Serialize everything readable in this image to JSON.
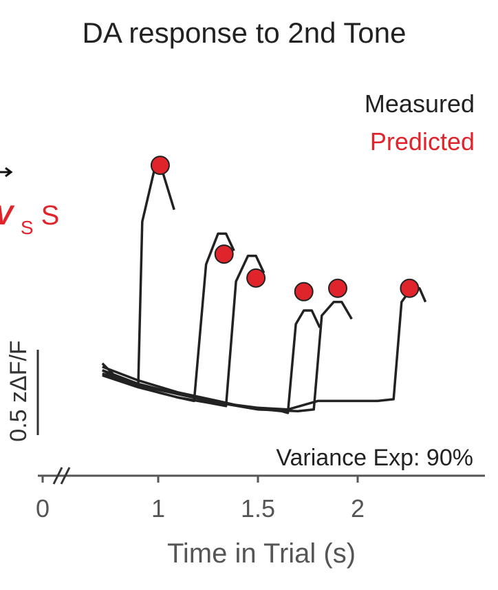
{
  "chart_data": {
    "type": "line",
    "title": "DA response to 2nd Tone",
    "xlabel": "Time in Trial (s)",
    "xticks": [
      {
        "value": 0,
        "label": "0"
      },
      {
        "value": 1,
        "label": "1"
      },
      {
        "value": 1.5,
        "label": "1.5"
      },
      {
        "value": 2,
        "label": "2"
      }
    ],
    "axis_break": true,
    "scale_bar": {
      "label": "0.5 zΔF/F",
      "value": 0.5
    },
    "annotation": "Variance Exp: 90%",
    "side_label": {
      "main": "V",
      "sub": "S",
      "suffix": "S"
    },
    "legend": {
      "position": "top-right",
      "entries": [
        {
          "label": "Measured",
          "color": "#222222"
        },
        {
          "label": "Predicted",
          "color": "#e0242b"
        }
      ]
    },
    "colors": {
      "measured": "#222222",
      "predicted": "#e0242b",
      "axis": "#555555"
    },
    "series": [
      {
        "measured": [
          [
            0.72,
            0.42
          ],
          [
            0.78,
            0.35
          ],
          [
            0.85,
            0.32
          ],
          [
            0.9,
            0.3
          ],
          [
            0.92,
            1.25
          ],
          [
            0.98,
            1.55
          ],
          [
            1.02,
            1.55
          ],
          [
            1.08,
            1.32
          ]
        ],
        "predicted": {
          "x": 1.01,
          "y": 1.58
        }
      },
      {
        "measured": [
          [
            0.72,
            0.38
          ],
          [
            0.85,
            0.3
          ],
          [
            1.0,
            0.25
          ],
          [
            1.1,
            0.22
          ],
          [
            1.18,
            0.2
          ],
          [
            1.24,
            1.0
          ],
          [
            1.3,
            1.18
          ],
          [
            1.34,
            1.18
          ],
          [
            1.38,
            1.08
          ]
        ],
        "predicted": {
          "x": 1.33,
          "y": 1.06
        }
      },
      {
        "measured": [
          [
            0.72,
            0.35
          ],
          [
            0.9,
            0.28
          ],
          [
            1.1,
            0.22
          ],
          [
            1.25,
            0.19
          ],
          [
            1.34,
            0.17
          ],
          [
            1.39,
            0.9
          ],
          [
            1.45,
            1.05
          ],
          [
            1.49,
            1.05
          ],
          [
            1.53,
            0.95
          ]
        ],
        "predicted": {
          "x": 1.49,
          "y": 0.92
        }
      },
      {
        "measured": [
          [
            0.72,
            0.4
          ],
          [
            0.9,
            0.32
          ],
          [
            1.1,
            0.25
          ],
          [
            1.3,
            0.2
          ],
          [
            1.45,
            0.16
          ],
          [
            1.62,
            0.14
          ],
          [
            1.65,
            0.13
          ],
          [
            1.69,
            0.65
          ],
          [
            1.73,
            0.73
          ],
          [
            1.77,
            0.73
          ],
          [
            1.81,
            0.63
          ]
        ],
        "predicted": {
          "x": 1.73,
          "y": 0.84
        }
      },
      {
        "measured": [
          [
            0.72,
            0.36
          ],
          [
            0.9,
            0.29
          ],
          [
            1.1,
            0.24
          ],
          [
            1.3,
            0.19
          ],
          [
            1.5,
            0.15
          ],
          [
            1.7,
            0.14
          ],
          [
            1.78,
            0.15
          ],
          [
            1.82,
            0.7
          ],
          [
            1.88,
            0.78
          ],
          [
            1.92,
            0.78
          ],
          [
            1.97,
            0.68
          ]
        ],
        "predicted": {
          "x": 1.9,
          "y": 0.86
        }
      },
      {
        "measured": [
          [
            0.72,
            0.38
          ],
          [
            0.9,
            0.3
          ],
          [
            1.1,
            0.24
          ],
          [
            1.3,
            0.19
          ],
          [
            1.5,
            0.16
          ],
          [
            1.65,
            0.15
          ],
          [
            1.8,
            0.2
          ],
          [
            1.95,
            0.2
          ],
          [
            2.1,
            0.2
          ],
          [
            2.18,
            0.21
          ],
          [
            2.22,
            0.78
          ],
          [
            2.27,
            0.86
          ],
          [
            2.31,
            0.86
          ],
          [
            2.34,
            0.78
          ]
        ],
        "predicted": {
          "x": 2.26,
          "y": 0.86
        }
      }
    ]
  }
}
